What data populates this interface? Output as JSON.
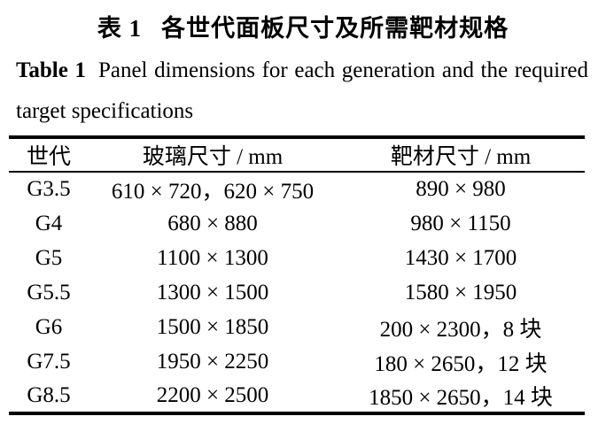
{
  "caption_zh": {
    "label": "表 1",
    "text": "各世代面板尺寸及所需靶材规格"
  },
  "caption_en": {
    "label": "Table 1",
    "line1": "Panel dimensions for each generation and the required",
    "line2": "target specifications"
  },
  "table": {
    "headers": [
      "世代",
      "玻璃尺寸 / mm",
      "靶材尺寸 / mm"
    ],
    "rows": [
      {
        "generation": "G3.5",
        "glass_size": "610 × 720，620 × 750",
        "target_size": "890 × 980"
      },
      {
        "generation": "G4",
        "glass_size": "680 × 880",
        "target_size": "980 × 1150"
      },
      {
        "generation": "G5",
        "glass_size": "1100 × 1300",
        "target_size": "1430 × 1700"
      },
      {
        "generation": "G5.5",
        "glass_size": "1300 × 1500",
        "target_size": "1580 × 1950"
      },
      {
        "generation": "G6",
        "glass_size": "1500 × 1850",
        "target_size": "200 × 2300，8 块"
      },
      {
        "generation": "G7.5",
        "glass_size": "1950 × 2250",
        "target_size": "180 × 2650，12 块"
      },
      {
        "generation": "G8.5",
        "glass_size": "2200 × 2500",
        "target_size": "1850 × 2650，14 块"
      }
    ]
  },
  "colors": {
    "text": "#000000",
    "background": "#ffffff",
    "rule": "#000000"
  }
}
